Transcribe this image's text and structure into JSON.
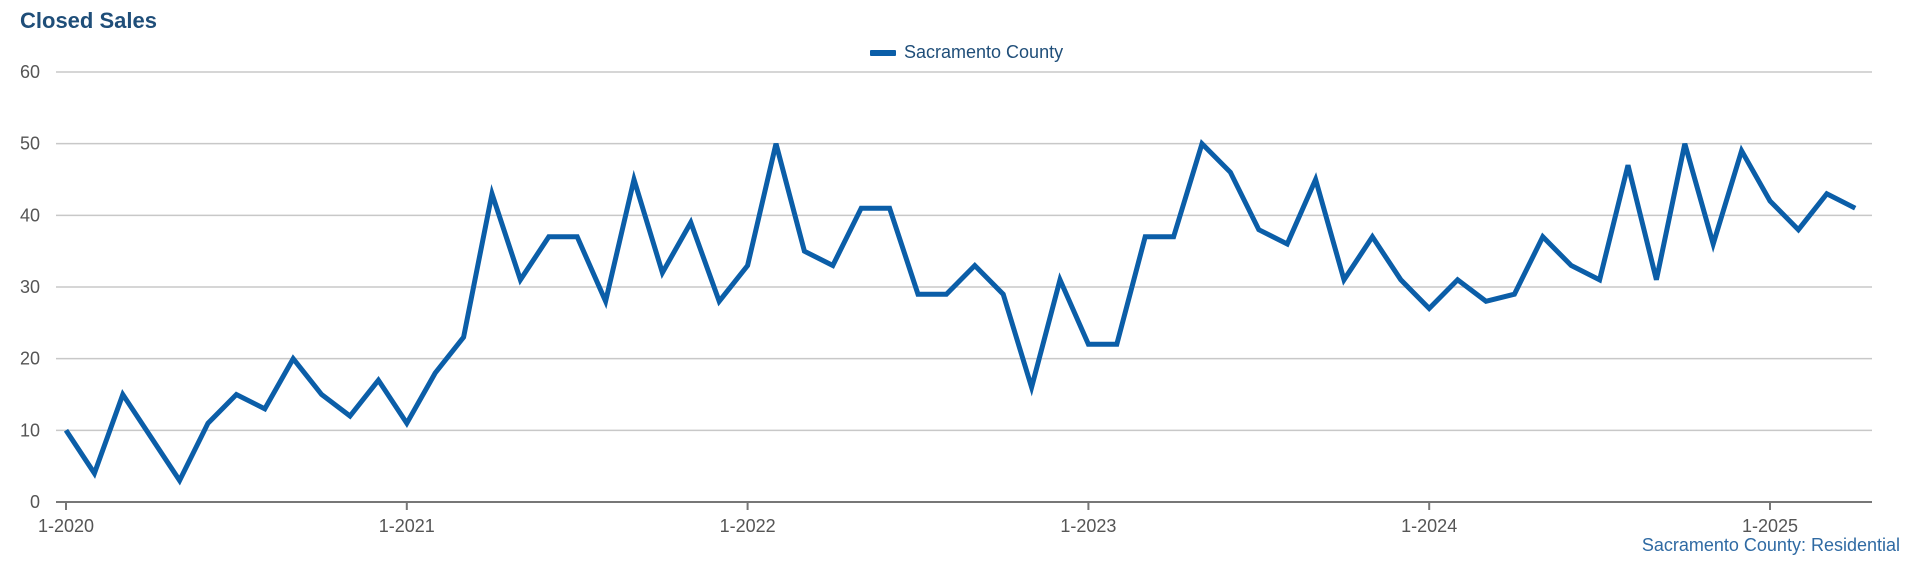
{
  "title": "Closed Sales",
  "footnote": "Sacramento County: Residential",
  "chart_data": {
    "type": "line",
    "title": "Closed Sales",
    "xlabel": "",
    "ylabel": "",
    "ylim": [
      0,
      60
    ],
    "yticks": [
      0,
      10,
      20,
      30,
      40,
      50,
      60
    ],
    "xticks": [
      "1-2020",
      "1-2021",
      "1-2022",
      "1-2023",
      "1-2024",
      "1-2025"
    ],
    "grid": true,
    "legend_position": "top-center",
    "color": "#0b5ea8",
    "x": [
      "1-2020",
      "2-2020",
      "3-2020",
      "4-2020",
      "5-2020",
      "6-2020",
      "7-2020",
      "8-2020",
      "9-2020",
      "10-2020",
      "11-2020",
      "12-2020",
      "1-2021",
      "2-2021",
      "3-2021",
      "4-2021",
      "5-2021",
      "6-2021",
      "7-2021",
      "8-2021",
      "9-2021",
      "10-2021",
      "11-2021",
      "12-2021",
      "1-2022",
      "2-2022",
      "3-2022",
      "4-2022",
      "5-2022",
      "6-2022",
      "7-2022",
      "8-2022",
      "9-2022",
      "10-2022",
      "11-2022",
      "12-2022",
      "1-2023",
      "2-2023",
      "3-2023",
      "4-2023",
      "5-2023",
      "6-2023",
      "7-2023",
      "8-2023",
      "9-2023",
      "10-2023",
      "11-2023",
      "12-2023",
      "1-2024",
      "2-2024",
      "3-2024",
      "4-2024",
      "5-2024",
      "6-2024",
      "7-2024",
      "8-2024",
      "9-2024",
      "10-2024",
      "11-2024",
      "12-2024",
      "1-2025",
      "2-2025",
      "3-2025",
      "4-2025"
    ],
    "series": [
      {
        "name": "Sacramento County",
        "values": [
          10,
          4,
          15,
          9,
          3,
          11,
          15,
          13,
          20,
          15,
          12,
          17,
          11,
          18,
          23,
          43,
          31,
          37,
          37,
          28,
          45,
          32,
          39,
          28,
          33,
          50,
          35,
          33,
          41,
          41,
          29,
          29,
          33,
          29,
          16,
          31,
          22,
          22,
          37,
          37,
          50,
          46,
          38,
          36,
          45,
          31,
          37,
          31,
          27,
          31,
          28,
          29,
          37,
          33,
          31,
          47,
          31,
          50,
          36,
          49,
          42,
          38,
          43,
          41
        ]
      }
    ]
  }
}
